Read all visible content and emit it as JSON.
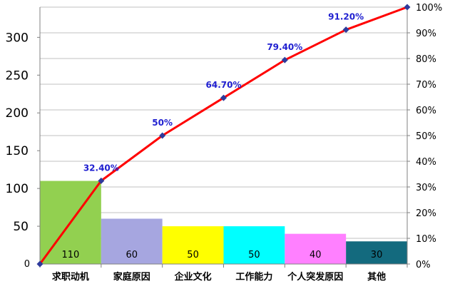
{
  "chart_data": {
    "type": "bar",
    "categories": [
      "求职动机",
      "家庭原因",
      "企业文化",
      "工作能力",
      "个人突发原因",
      "其他"
    ],
    "values": [
      110,
      60,
      50,
      50,
      40,
      30
    ],
    "value_labels": [
      "110",
      "60",
      "50",
      "50",
      "40",
      "30"
    ],
    "bar_colors": [
      "#92d050",
      "#a6a6e0",
      "#ffff00",
      "#00ffff",
      "#ff80ff",
      "#136a7e"
    ],
    "ylim": [
      0,
      340
    ],
    "y_ticks": [
      {
        "value": 0,
        "label": "0"
      },
      {
        "value": 50,
        "label": "50"
      },
      {
        "value": 100,
        "label": "100"
      },
      {
        "value": 150,
        "label": "150"
      },
      {
        "value": 200,
        "label": "200"
      },
      {
        "value": 250,
        "label": "250"
      },
      {
        "value": 300,
        "label": "300"
      }
    ],
    "y2lim": [
      0,
      100
    ],
    "y2_ticks": [
      "0%",
      "10%",
      "20%",
      "30%",
      "40%",
      "50%",
      "60%",
      "70%",
      "80%",
      "90%",
      "100%"
    ],
    "cumulative_line": {
      "color": "#ff0000",
      "marker_color": "#2e3a9c",
      "x_positions": [
        0,
        1,
        2,
        3,
        4,
        5,
        6
      ],
      "values": [
        0,
        32.4,
        50,
        64.7,
        79.4,
        91.2,
        100
      ],
      "labels": [
        "",
        "32.40%",
        "50%",
        "64.70%",
        "79.40%",
        "91.20%",
        ""
      ]
    },
    "grid": true,
    "legend": "none",
    "title": "",
    "xlabel": "",
    "ylabel": ""
  }
}
